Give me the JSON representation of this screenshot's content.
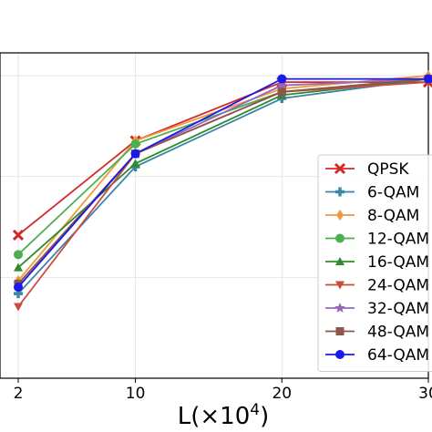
{
  "chart_data": {
    "type": "line",
    "title": "",
    "ylabel": "",
    "xlabel_parts": {
      "main": "L(×10",
      "sup": "4",
      "tail": ")"
    },
    "x": [
      2,
      10,
      20,
      30
    ],
    "x_tick_labels": [
      "2",
      "10",
      "20",
      "30"
    ],
    "xlim": [
      0,
      30
    ],
    "ylim": [
      0.0,
      1.0
    ],
    "y_ticks": [
      0.0,
      0.31,
      0.62,
      0.93
    ],
    "grid": true,
    "legend_placement": "right",
    "series": [
      {
        "name": "QPSK",
        "color": "#d62728",
        "marker": "x",
        "values": [
          0.44,
          0.73,
          0.91,
          0.91
        ]
      },
      {
        "name": "6-QAM",
        "color": "#3d85a8",
        "marker": "plus",
        "values": [
          0.26,
          0.65,
          0.86,
          0.92
        ]
      },
      {
        "name": "8-QAM",
        "color": "#ee9a3a",
        "marker": "diamond",
        "values": [
          0.3,
          0.73,
          0.89,
          0.93
        ]
      },
      {
        "name": "12-QAM",
        "color": "#4caf50",
        "marker": "circle",
        "values": [
          0.38,
          0.72,
          0.88,
          0.92
        ]
      },
      {
        "name": "16-QAM",
        "color": "#2e8b2e",
        "marker": "triangle-up",
        "values": [
          0.34,
          0.66,
          0.87,
          0.92
        ]
      },
      {
        "name": "24-QAM",
        "color": "#cc4b3c",
        "marker": "triangle-down",
        "values": [
          0.22,
          0.69,
          0.88,
          0.91
        ]
      },
      {
        "name": "32-QAM",
        "color": "#9467bd",
        "marker": "star",
        "values": [
          0.29,
          0.69,
          0.9,
          0.92
        ]
      },
      {
        "name": "48-QAM",
        "color": "#8c564b",
        "marker": "square",
        "values": [
          0.29,
          0.69,
          0.88,
          0.92
        ]
      },
      {
        "name": "64-QAM",
        "color": "#1a1ae6",
        "marker": "circle",
        "values": [
          0.28,
          0.69,
          0.92,
          0.92
        ]
      }
    ]
  }
}
